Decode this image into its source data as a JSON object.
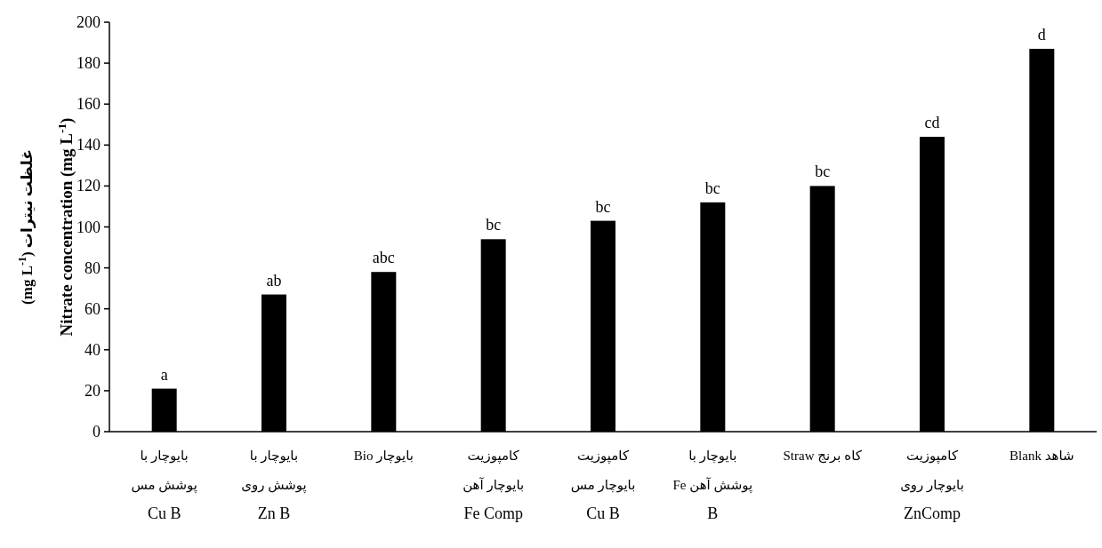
{
  "chart_data": {
    "type": "bar",
    "ylabel": "غلظت نیترات (mg L$^{-1}$)\nNitrate concentration (mg L$^{-1}$)",
    "categories": [
      "بایوچار با\nپوشش مس\nCu B",
      "بایوچار با\nپوشش روی\nZn B",
      "بایوچار Bio",
      "کامپوزیت\nبایوچار آهن\nFe Comp",
      "کامپوزیت\nبایوچار مس\nCu B",
      "بایوچار با\nپوشش آهن  Fe\nB",
      "کاه برنج Straw",
      "کامپوزیت\nبایوچار روی\nZnComp",
      "شاهد Blank"
    ],
    "values": [
      21,
      67,
      78,
      94,
      103,
      112,
      120,
      144,
      187
    ],
    "value_labels": [
      "a",
      "ab",
      "abc",
      "bc",
      "bc",
      "bc",
      "bc",
      "cd",
      "d"
    ],
    "color": "#000000",
    "ylim": [
      0,
      200
    ],
    "yticks": [
      0,
      20,
      40,
      60,
      80,
      100,
      120,
      140,
      160,
      180,
      200
    ]
  }
}
